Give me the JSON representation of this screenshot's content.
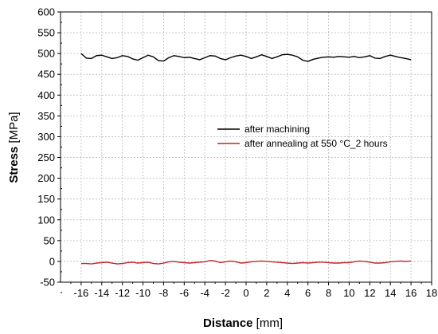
{
  "chart_data": {
    "type": "line",
    "xlabel_main": "Distance",
    "xlabel_unit": " [mm]",
    "ylabel_main": "Stress",
    "ylabel_unit": " [MPa]",
    "xlim": [
      -18,
      18
    ],
    "ylim": [
      -50,
      600
    ],
    "xticks": [
      -16,
      -14,
      -12,
      -10,
      -8,
      -6,
      -4,
      -2,
      0,
      2,
      4,
      6,
      8,
      10,
      12,
      14,
      16,
      18
    ],
    "yticks": [
      -50,
      0,
      50,
      100,
      150,
      200,
      250,
      300,
      350,
      400,
      450,
      500,
      550,
      600
    ],
    "grid": true,
    "legend_position": "center-right",
    "series": [
      {
        "name": "after machining",
        "color": "#000000",
        "x": [
          -16,
          -15.5,
          -15,
          -14.5,
          -14,
          -13.5,
          -13,
          -12.5,
          -12,
          -11.5,
          -11,
          -10.5,
          -10,
          -9.5,
          -9,
          -8.5,
          -8,
          -7.5,
          -7,
          -6.5,
          -6,
          -5.5,
          -5,
          -4.5,
          -4,
          -3.5,
          -3,
          -2.5,
          -2,
          -1.5,
          -1,
          -0.5,
          0,
          0.5,
          1,
          1.5,
          2,
          2.5,
          3,
          3.5,
          4,
          4.5,
          5,
          5.5,
          6,
          6.5,
          7,
          7.5,
          8,
          8.5,
          9,
          9.5,
          10,
          10.5,
          11,
          11.5,
          12,
          12.5,
          13,
          13.5,
          14,
          14.5,
          15,
          15.5,
          16
        ],
        "y": [
          500,
          489,
          488,
          495,
          496,
          492,
          488,
          490,
          495,
          493,
          487,
          484,
          490,
          496,
          492,
          483,
          482,
          490,
          495,
          493,
          490,
          491,
          488,
          485,
          490,
          495,
          494,
          488,
          485,
          490,
          494,
          496,
          493,
          488,
          492,
          497,
          493,
          488,
          492,
          497,
          498,
          496,
          492,
          484,
          481,
          486,
          489,
          491,
          492,
          491,
          493,
          492,
          491,
          493,
          490,
          492,
          495,
          489,
          488,
          493,
          496,
          493,
          490,
          488,
          485
        ]
      },
      {
        "name": "after annealing at 550 °C_2 hours",
        "color": "#c0272d",
        "x": [
          -16,
          -15.5,
          -15,
          -14.5,
          -14,
          -13.5,
          -13,
          -12.5,
          -12,
          -11.5,
          -11,
          -10.5,
          -10,
          -9.5,
          -9,
          -8.5,
          -8,
          -7.5,
          -7,
          -6.5,
          -6,
          -5.5,
          -5,
          -4.5,
          -4,
          -3.5,
          -3,
          -2.5,
          -2,
          -1.5,
          -1,
          -0.5,
          0,
          0.5,
          1,
          1.5,
          2,
          2.5,
          3,
          3.5,
          4,
          4.5,
          5,
          5.5,
          6,
          6.5,
          7,
          7.5,
          8,
          8.5,
          9,
          9.5,
          10,
          10.5,
          11,
          11.5,
          12,
          12.5,
          13,
          13.5,
          14,
          14.5,
          15,
          15.5,
          16
        ],
        "y": [
          -5,
          -5,
          -6,
          -4,
          -3,
          -2,
          -4,
          -6,
          -5,
          -3,
          -2,
          -4,
          -3,
          -2,
          -5,
          -6,
          -4,
          -1,
          0,
          -2,
          -3,
          -4,
          -3,
          -2,
          -1,
          2,
          1,
          -3,
          -1,
          1,
          -1,
          -4,
          -3,
          -1,
          0,
          1,
          0,
          -1,
          -2,
          -3,
          -4,
          -5,
          -4,
          -3,
          -4,
          -3,
          -2,
          -2,
          -3,
          -4,
          -4,
          -3,
          -3,
          -1,
          1,
          0,
          -2,
          -4,
          -4,
          -3,
          -1,
          0,
          1,
          0,
          1
        ]
      }
    ]
  }
}
